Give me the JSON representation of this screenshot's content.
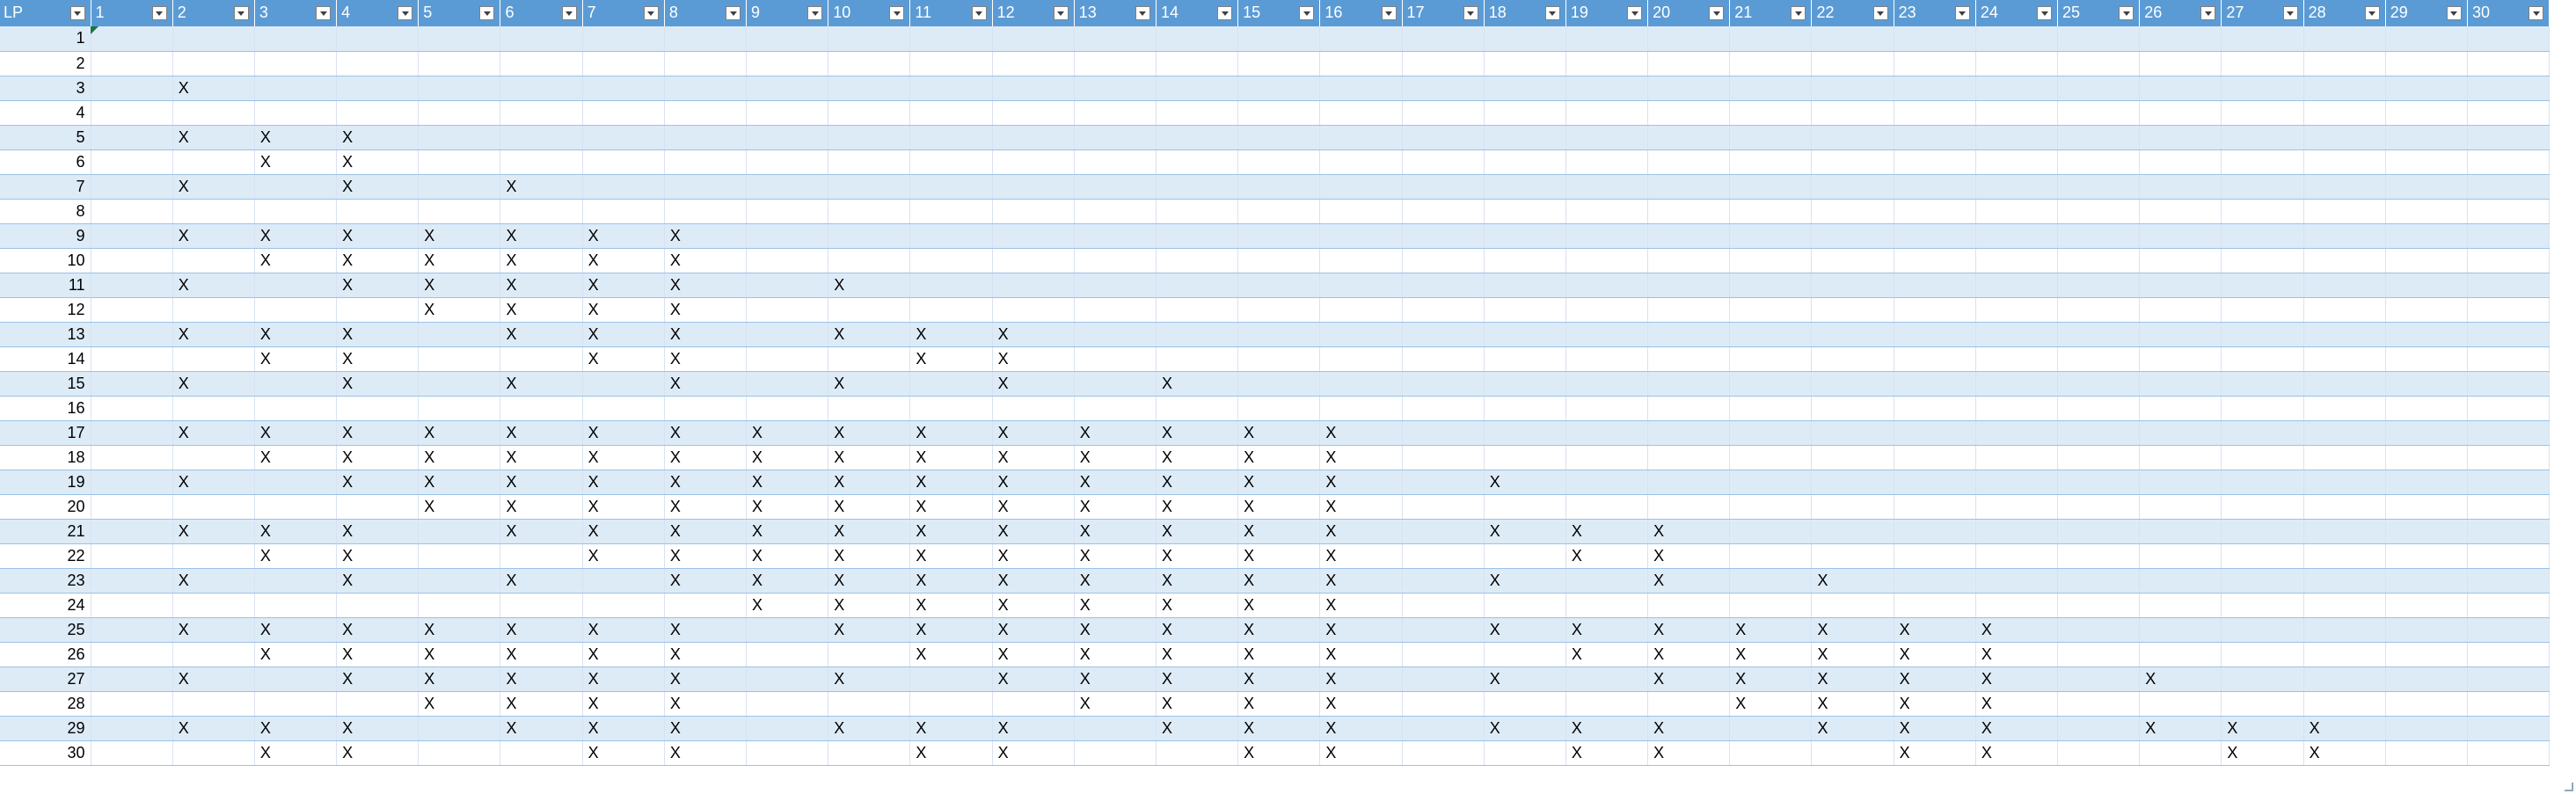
{
  "table": {
    "lp_header": "LP",
    "column_headers": [
      "1",
      "2",
      "3",
      "4",
      "5",
      "6",
      "7",
      "8",
      "9",
      "10",
      "11",
      "12",
      "13",
      "14",
      "15",
      "16",
      "17",
      "18",
      "19",
      "20",
      "21",
      "22",
      "23",
      "24",
      "25",
      "26",
      "27",
      "28",
      "29",
      "30"
    ],
    "marker": "X",
    "rows": [
      {
        "lp": "1",
        "cells": []
      },
      {
        "lp": "2",
        "cells": []
      },
      {
        "lp": "3",
        "cells": [
          "2"
        ]
      },
      {
        "lp": "4",
        "cells": []
      },
      {
        "lp": "5",
        "cells": [
          "2",
          "3",
          "4"
        ]
      },
      {
        "lp": "6",
        "cells": [
          "3",
          "4"
        ]
      },
      {
        "lp": "7",
        "cells": [
          "2",
          "4",
          "6"
        ]
      },
      {
        "lp": "8",
        "cells": []
      },
      {
        "lp": "9",
        "cells": [
          "2",
          "3",
          "4",
          "5",
          "6",
          "7",
          "8"
        ]
      },
      {
        "lp": "10",
        "cells": [
          "3",
          "4",
          "5",
          "6",
          "7",
          "8"
        ]
      },
      {
        "lp": "11",
        "cells": [
          "2",
          "4",
          "5",
          "6",
          "7",
          "8",
          "10"
        ]
      },
      {
        "lp": "12",
        "cells": [
          "5",
          "6",
          "7",
          "8"
        ]
      },
      {
        "lp": "13",
        "cells": [
          "2",
          "3",
          "4",
          "6",
          "7",
          "8",
          "10",
          "11",
          "12"
        ]
      },
      {
        "lp": "14",
        "cells": [
          "3",
          "4",
          "7",
          "8",
          "11",
          "12"
        ]
      },
      {
        "lp": "15",
        "cells": [
          "2",
          "4",
          "6",
          "8",
          "10",
          "12",
          "14"
        ]
      },
      {
        "lp": "16",
        "cells": []
      },
      {
        "lp": "17",
        "cells": [
          "2",
          "3",
          "4",
          "5",
          "6",
          "7",
          "8",
          "9",
          "10",
          "11",
          "12",
          "13",
          "14",
          "15",
          "16"
        ]
      },
      {
        "lp": "18",
        "cells": [
          "3",
          "4",
          "5",
          "6",
          "7",
          "8",
          "9",
          "10",
          "11",
          "12",
          "13",
          "14",
          "15",
          "16"
        ]
      },
      {
        "lp": "19",
        "cells": [
          "2",
          "4",
          "5",
          "6",
          "7",
          "8",
          "9",
          "10",
          "11",
          "12",
          "13",
          "14",
          "15",
          "16",
          "18"
        ]
      },
      {
        "lp": "20",
        "cells": [
          "5",
          "6",
          "7",
          "8",
          "9",
          "10",
          "11",
          "12",
          "13",
          "14",
          "15",
          "16"
        ]
      },
      {
        "lp": "21",
        "cells": [
          "2",
          "3",
          "4",
          "6",
          "7",
          "8",
          "9",
          "10",
          "11",
          "12",
          "13",
          "14",
          "15",
          "16",
          "18",
          "19",
          "20"
        ]
      },
      {
        "lp": "22",
        "cells": [
          "3",
          "4",
          "7",
          "8",
          "9",
          "10",
          "11",
          "12",
          "13",
          "14",
          "15",
          "16",
          "19",
          "20"
        ]
      },
      {
        "lp": "23",
        "cells": [
          "2",
          "4",
          "6",
          "8",
          "9",
          "10",
          "11",
          "12",
          "13",
          "14",
          "15",
          "16",
          "18",
          "20",
          "22"
        ]
      },
      {
        "lp": "24",
        "cells": [
          "9",
          "10",
          "11",
          "12",
          "13",
          "14",
          "15",
          "16"
        ]
      },
      {
        "lp": "25",
        "cells": [
          "2",
          "3",
          "4",
          "5",
          "6",
          "7",
          "8",
          "10",
          "11",
          "12",
          "13",
          "14",
          "15",
          "16",
          "18",
          "19",
          "20",
          "21",
          "22",
          "23",
          "24"
        ]
      },
      {
        "lp": "26",
        "cells": [
          "3",
          "4",
          "5",
          "6",
          "7",
          "8",
          "11",
          "12",
          "13",
          "14",
          "15",
          "16",
          "19",
          "20",
          "21",
          "22",
          "23",
          "24"
        ]
      },
      {
        "lp": "27",
        "cells": [
          "2",
          "4",
          "5",
          "6",
          "7",
          "8",
          "10",
          "12",
          "13",
          "14",
          "15",
          "16",
          "18",
          "20",
          "21",
          "22",
          "23",
          "24",
          "26"
        ]
      },
      {
        "lp": "28",
        "cells": [
          "5",
          "6",
          "7",
          "8",
          "13",
          "14",
          "15",
          "16",
          "21",
          "22",
          "23",
          "24"
        ]
      },
      {
        "lp": "29",
        "cells": [
          "2",
          "3",
          "4",
          "6",
          "7",
          "8",
          "10",
          "11",
          "12",
          "14",
          "15",
          "16",
          "18",
          "19",
          "20",
          "22",
          "23",
          "24",
          "26",
          "27",
          "28"
        ]
      },
      {
        "lp": "30",
        "cells": [
          "3",
          "4",
          "7",
          "8",
          "11",
          "12",
          "15",
          "16",
          "19",
          "20",
          "23",
          "24",
          "27",
          "28"
        ]
      }
    ]
  },
  "colors": {
    "header_bg": "#5b9bd5",
    "band_bg": "#ddebf7",
    "plain_bg": "#ffffff",
    "border": "#9bc2e6"
  }
}
